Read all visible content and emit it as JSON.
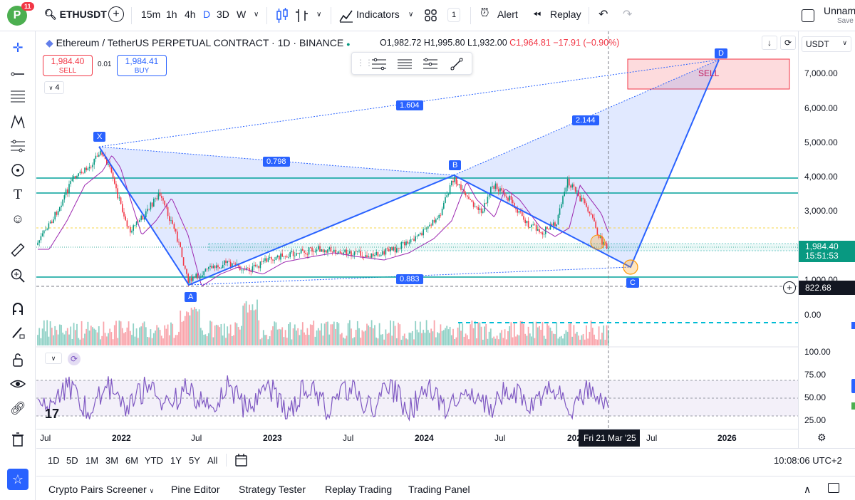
{
  "header": {
    "avatar_letter": "P",
    "notifications": "11",
    "symbol": "ETHUSDT",
    "intervals": [
      "15m",
      "1h",
      "4h",
      "D",
      "3D",
      "W"
    ],
    "active_interval": "D",
    "indicators_label": "Indicators",
    "layout_count": "1",
    "alert_label": "Alert",
    "replay_label": "Replay",
    "layout_name": "Unname",
    "save_label": "Save"
  },
  "legend": {
    "title": "Ethereum / TetherUS PERPETUAL CONTRACT · 1D · BINANCE",
    "open": "O1,982.72",
    "high": "H1,995.80",
    "low": "L1,932.00",
    "close": "C1,964.81",
    "change": "−17.91 (−0.90%)",
    "sell_price": "1,984.40",
    "sell_label": "SELL",
    "spread": "0.01",
    "buy_price": "1,984.41",
    "buy_label": "BUY",
    "collapse_count": "4"
  },
  "price_axis": {
    "currency": "USDT",
    "ticks": [
      "7,000.00",
      "6,000.00",
      "5,000.00",
      "4,000.00",
      "3,000.00",
      "1,000.00"
    ],
    "current_price": "1,984.40",
    "countdown": "15:51:53",
    "crosshair_price": "822.68",
    "volume_zero": "0.00",
    "rsi_ticks": [
      "100.00",
      "75.00",
      "50.00",
      "25.00"
    ]
  },
  "pattern": {
    "points": [
      "X",
      "A",
      "B",
      "C",
      "D"
    ],
    "ratios": [
      "1.604",
      "0.798",
      "2.144",
      "0.883"
    ],
    "zone_label": "SELL"
  },
  "time_axis": {
    "labels": [
      "Jul",
      "2022",
      "Jul",
      "2023",
      "Jul",
      "2024",
      "Jul",
      "202",
      "Jul",
      "2026"
    ],
    "crosshair_date": "Fri 21 Mar '25"
  },
  "range_bar": {
    "ranges": [
      "1D",
      "5D",
      "1M",
      "3M",
      "6M",
      "YTD",
      "1Y",
      "5Y",
      "All"
    ],
    "clock": "10:08:06 UTC+2"
  },
  "bottom_tabs": [
    "Crypto Pairs Screener",
    "Pine Editor",
    "Strategy Tester",
    "Replay Trading",
    "Trading Panel"
  ],
  "colors": {
    "accent": "#2962ff",
    "down": "#f23645",
    "up": "#089981",
    "rsi": "#7e57c2",
    "teal_line": "#00a19a"
  }
}
